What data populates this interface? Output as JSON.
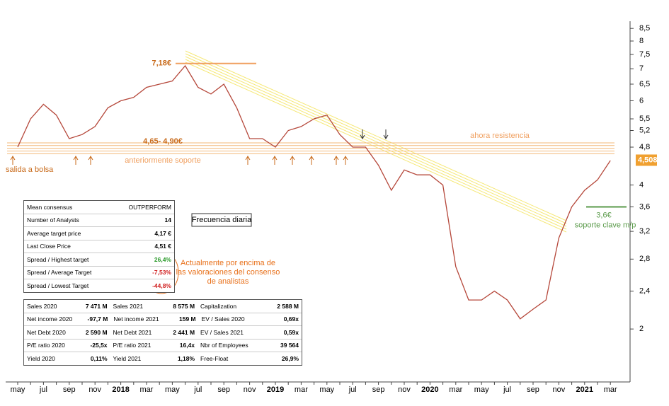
{
  "chart_data": {
    "type": "line",
    "log_scale": true,
    "color": "#b5473a",
    "categories": [
      "may",
      null,
      "jul",
      null,
      "sep",
      null,
      "nov",
      null,
      "2018",
      null,
      "mar",
      null,
      "may",
      null,
      "jul",
      null,
      "sep",
      null,
      "nov",
      null,
      "2019",
      null,
      "mar",
      null,
      "may",
      null,
      "jul",
      null,
      "sep",
      null,
      "nov",
      null,
      "2020",
      null,
      "mar",
      null,
      "may",
      null,
      "jul",
      null,
      "sep",
      null,
      "nov",
      null,
      "2021",
      null,
      "mar"
    ],
    "values": [
      4.8,
      5.5,
      5.9,
      5.6,
      5.0,
      5.1,
      5.3,
      5.8,
      6.0,
      6.1,
      6.4,
      6.5,
      6.6,
      7.1,
      6.4,
      6.2,
      6.5,
      5.8,
      5.0,
      5.0,
      4.8,
      5.2,
      5.3,
      5.5,
      5.6,
      5.1,
      4.8,
      4.8,
      4.4,
      3.9,
      4.3,
      4.2,
      4.2,
      4.0,
      2.7,
      2.3,
      2.3,
      2.4,
      2.3,
      2.1,
      2.2,
      2.3,
      3.1,
      3.6,
      3.9,
      4.1,
      4.5
    ],
    "ylim": [
      1.55,
      8.8
    ],
    "yticks": [
      2,
      {
        "value": 2.4,
        "label": "2,4"
      },
      {
        "value": 2.8,
        "label": "2,8"
      },
      {
        "value": 3.2,
        "label": "3,2"
      },
      {
        "value": 3.6,
        "label": "3,6"
      },
      4,
      {
        "value": 4.8,
        "label": "4,8"
      },
      {
        "value": 5.2,
        "label": "5,2"
      },
      {
        "value": 5.5,
        "label": "5,5"
      },
      6,
      {
        "value": 6.5,
        "label": "6,5"
      },
      7,
      {
        "value": 7.5,
        "label": "7,5"
      },
      8,
      {
        "value": 8.5,
        "label": "8,5"
      }
    ],
    "last_price": {
      "value": 4.508,
      "label": "4,508"
    },
    "resistance": {
      "value": 7.18,
      "label": "7,18€"
    },
    "band": {
      "from": 4.65,
      "to": 4.9,
      "label": "4,65- 4,90€",
      "below_note": "anteriormente soporte",
      "above_note": "ahora resistencia"
    },
    "support": {
      "value": 3.6,
      "label": "3,6€",
      "note": "soporte clave m/p"
    },
    "ipo_note": "salida a bolsa",
    "frequency": "Frecuencia diaria",
    "consensus_note": [
      "Actualmente por encima de",
      "las valoraciones del consenso",
      "de analistas"
    ]
  },
  "consensus_table": [
    [
      "Mean consensus",
      "OUTPERFORM"
    ],
    [
      "Number of Analysts",
      "14"
    ],
    [
      "Average target price",
      "4,17 €"
    ],
    [
      "Last Close Price",
      "4,51 €"
    ],
    [
      "Spread / Highest target",
      "26,4%"
    ],
    [
      "Spread / Average Target",
      "-7,53%"
    ],
    [
      "Spread / Lowest Target",
      "-44,8%"
    ]
  ],
  "financial_table": [
    [
      "Sales 2020",
      "7 471 M",
      "Sales 2021",
      "8 575 M",
      "Capitalization",
      "2 588 M"
    ],
    [
      "Net income 2020",
      "-97,7 M",
      "Net income 2021",
      "159 M",
      "EV / Sales 2020",
      "0,69x"
    ],
    [
      "Net Debt 2020",
      "2 590 M",
      "Net Debt 2021",
      "2 441 M",
      "EV / Sales 2021",
      "0,59x"
    ],
    [
      "P/E ratio 2020",
      "-25,5x",
      "P/E ratio 2021",
      "16,4x",
      "Nbr of Employees",
      "39 564"
    ],
    [
      "Yield 2020",
      "0,11%",
      "Yield 2021",
      "1,18%",
      "Free-Float",
      "26,9%"
    ]
  ]
}
